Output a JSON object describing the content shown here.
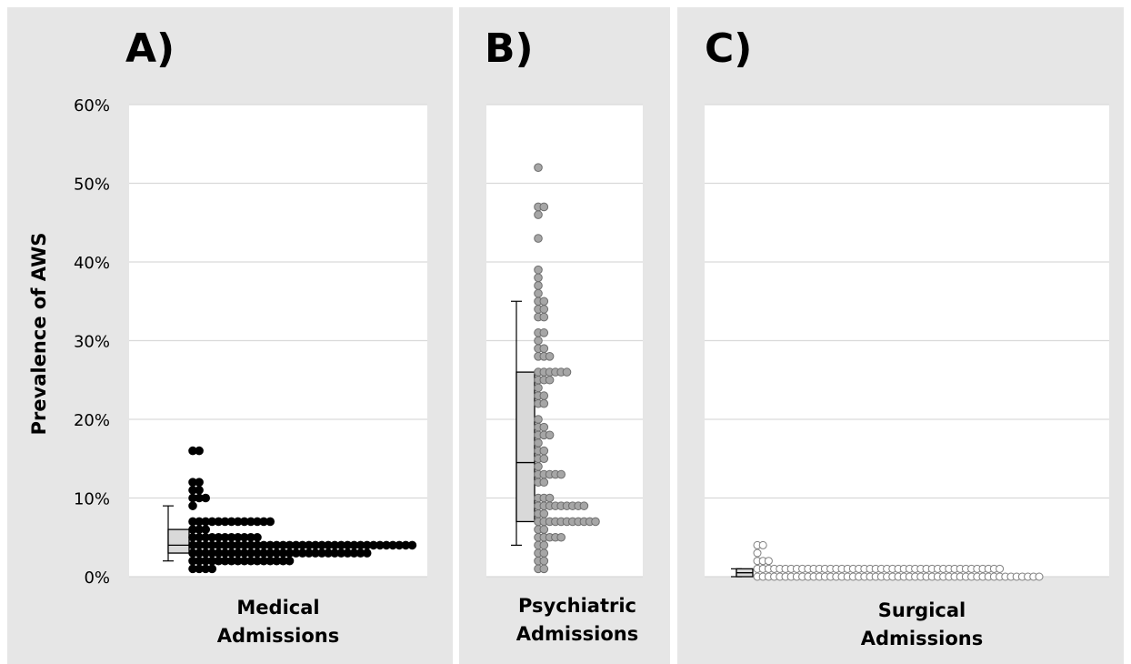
{
  "y_axis": {
    "label": "Prevalence of AWS",
    "ticks": [
      "0%",
      "10%",
      "20%",
      "30%",
      "40%",
      "50%",
      "60%"
    ]
  },
  "panels": [
    {
      "letter": "A)",
      "category_lines": [
        "Medical",
        "Admissions"
      ]
    },
    {
      "letter": "B)",
      "category_lines": [
        "Psychiatric",
        "Admissions"
      ]
    },
    {
      "letter": "C)",
      "category_lines": [
        "Surgical",
        "Admissions"
      ]
    }
  ],
  "colors": {
    "panel_bg": "#e6e6e6",
    "plot_bg": "#ffffff",
    "gridline": "#d9d9d9",
    "box_fill": "#d9d9d9",
    "medical_dots": "#000000",
    "psychiatric_dots": "#a6a6a6",
    "surgical_dots": "#ffffff"
  },
  "chart_data": [
    {
      "type": "box-dotplot",
      "category": "Medical Admissions",
      "ylim": [
        0,
        60
      ],
      "y_unit": "%",
      "box": {
        "whisker_low": 2,
        "q1": 3,
        "median": 4,
        "q3": 6,
        "whisker_high": 9
      },
      "dot_counts": [
        {
          "y": 1,
          "count": 4
        },
        {
          "y": 2,
          "count": 16
        },
        {
          "y": 3,
          "count": 28
        },
        {
          "y": 4,
          "count": 35
        },
        {
          "y": 5,
          "count": 11
        },
        {
          "y": 6,
          "count": 3
        },
        {
          "y": 7,
          "count": 13
        },
        {
          "y": 9,
          "count": 1
        },
        {
          "y": 10,
          "count": 3
        },
        {
          "y": 11,
          "count": 2
        },
        {
          "y": 12,
          "count": 2
        },
        {
          "y": 16,
          "count": 2
        }
      ]
    },
    {
      "type": "box-dotplot",
      "category": "Psychiatric Admissions",
      "ylim": [
        0,
        60
      ],
      "y_unit": "%",
      "box": {
        "whisker_low": 4,
        "q1": 7,
        "median": 14.5,
        "q3": 26,
        "whisker_high": 35
      },
      "dot_counts": [
        {
          "y": 1,
          "count": 2
        },
        {
          "y": 2,
          "count": 2
        },
        {
          "y": 3,
          "count": 2
        },
        {
          "y": 4,
          "count": 2
        },
        {
          "y": 5,
          "count": 5
        },
        {
          "y": 6,
          "count": 2
        },
        {
          "y": 7,
          "count": 11
        },
        {
          "y": 8,
          "count": 2
        },
        {
          "y": 9,
          "count": 9
        },
        {
          "y": 10,
          "count": 3
        },
        {
          "y": 12,
          "count": 2
        },
        {
          "y": 13,
          "count": 5
        },
        {
          "y": 14,
          "count": 1
        },
        {
          "y": 15,
          "count": 2
        },
        {
          "y": 16,
          "count": 2
        },
        {
          "y": 17,
          "count": 1
        },
        {
          "y": 18,
          "count": 3
        },
        {
          "y": 19,
          "count": 2
        },
        {
          "y": 20,
          "count": 1
        },
        {
          "y": 22,
          "count": 2
        },
        {
          "y": 23,
          "count": 2
        },
        {
          "y": 24,
          "count": 1
        },
        {
          "y": 25,
          "count": 3
        },
        {
          "y": 26,
          "count": 6
        },
        {
          "y": 28,
          "count": 3
        },
        {
          "y": 29,
          "count": 2
        },
        {
          "y": 30,
          "count": 1
        },
        {
          "y": 31,
          "count": 2
        },
        {
          "y": 33,
          "count": 2
        },
        {
          "y": 34,
          "count": 2
        },
        {
          "y": 35,
          "count": 2
        },
        {
          "y": 36,
          "count": 1
        },
        {
          "y": 37,
          "count": 1
        },
        {
          "y": 38,
          "count": 1
        },
        {
          "y": 39,
          "count": 1
        },
        {
          "y": 43,
          "count": 1
        },
        {
          "y": 46,
          "count": 1
        },
        {
          "y": 47,
          "count": 2
        },
        {
          "y": 52,
          "count": 1
        }
      ]
    },
    {
      "type": "box-dotplot",
      "category": "Surgical Admissions",
      "ylim": [
        0,
        60
      ],
      "y_unit": "%",
      "box": {
        "whisker_low": 0,
        "q1": 0,
        "median": 0.5,
        "q3": 1,
        "whisker_high": 1
      },
      "dot_counts": [
        {
          "y": 0,
          "count": 51
        },
        {
          "y": 1,
          "count": 44
        },
        {
          "y": 2,
          "count": 3
        },
        {
          "y": 3,
          "count": 1
        },
        {
          "y": 4,
          "count": 2
        }
      ]
    }
  ]
}
